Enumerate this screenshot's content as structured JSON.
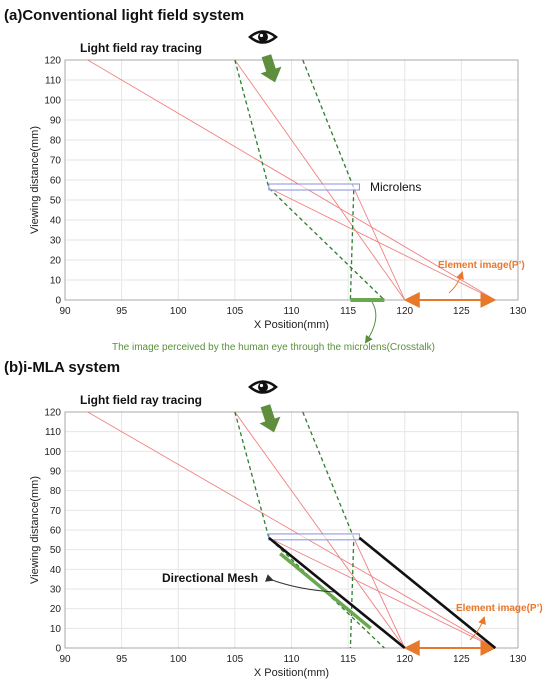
{
  "panels": {
    "a": {
      "title": "(a)Conventional light field system",
      "subtitle": "Light field ray tracing",
      "microlens_label": "Microlens",
      "element_label": "Element image(P’)",
      "crosstalk_label": "The image perceived by the human eye through the microlens(Crosstalk)"
    },
    "b": {
      "title": "(b)i-MLA system",
      "subtitle": "Light field ray tracing",
      "mesh_label": "Directional Mesh",
      "element_label": "Element image(P’)"
    }
  },
  "colors": {
    "ray": "#f08080",
    "dashed": "#2e7d32",
    "lens": "#8890e0",
    "orange": "#e8782a",
    "green_band": "#6aa84f",
    "mesh": "#111111",
    "eye": "#111111",
    "arrow": "#5f8f3e"
  },
  "icons": [
    "eye-icon",
    "down-arrow-icon"
  ],
  "chart_data": [
    {
      "type": "line",
      "xlabel": "X Position(mm)",
      "ylabel": "Viewing distance(mm)",
      "xlim": [
        90,
        130
      ],
      "ylim": [
        0,
        120
      ],
      "xticks": [
        "90",
        "95",
        "100",
        "105",
        "110",
        "115",
        "120",
        "125",
        "130"
      ],
      "yticks": [
        "0",
        "10",
        "20",
        "30",
        "40",
        "50",
        "60",
        "70",
        "80",
        "90",
        "100",
        "110",
        "120"
      ],
      "grid": true,
      "rays": [
        {
          "x": [
            92,
            128
          ],
          "y": [
            120,
            0
          ]
        },
        {
          "x": [
            105,
            120
          ],
          "y": [
            120,
            0
          ]
        },
        {
          "x": [
            108,
            128
          ],
          "y": [
            56,
            0
          ]
        },
        {
          "x": [
            115.5,
            120
          ],
          "y": [
            56,
            0
          ]
        }
      ],
      "dashed_lines": [
        {
          "x": [
            105,
            108,
            118.2
          ],
          "y": [
            120,
            56,
            0
          ]
        },
        {
          "x": [
            111,
            115.5,
            115.2
          ],
          "y": [
            120,
            56,
            0
          ]
        }
      ],
      "microlens": {
        "x": [
          108,
          116
        ],
        "y": [
          55,
          58
        ]
      },
      "element_image": {
        "x": [
          120,
          128
        ],
        "y": [
          0,
          0
        ]
      },
      "crosstalk_band": {
        "x": [
          115.2,
          118.2
        ],
        "y": [
          0,
          0
        ]
      }
    },
    {
      "type": "line",
      "xlabel": "X Position(mm)",
      "ylabel": "Viewing distance(mm)",
      "xlim": [
        90,
        130
      ],
      "ylim": [
        0,
        120
      ],
      "xticks": [
        "90",
        "95",
        "100",
        "105",
        "110",
        "115",
        "120",
        "125",
        "130"
      ],
      "yticks": [
        "0",
        "10",
        "20",
        "30",
        "40",
        "50",
        "60",
        "70",
        "80",
        "90",
        "100",
        "110",
        "120"
      ],
      "grid": true,
      "rays": [
        {
          "x": [
            92,
            128
          ],
          "y": [
            120,
            0
          ]
        },
        {
          "x": [
            105,
            120
          ],
          "y": [
            120,
            0
          ]
        },
        {
          "x": [
            108,
            128
          ],
          "y": [
            56,
            0
          ]
        },
        {
          "x": [
            115.5,
            120
          ],
          "y": [
            56,
            0
          ]
        }
      ],
      "dashed_lines": [
        {
          "x": [
            105,
            108,
            118.2
          ],
          "y": [
            120,
            56,
            0
          ]
        },
        {
          "x": [
            111,
            115.5,
            115.2
          ],
          "y": [
            120,
            56,
            0
          ]
        }
      ],
      "mesh_lines": [
        {
          "x": [
            108,
            120
          ],
          "y": [
            56,
            0
          ]
        },
        {
          "x": [
            116,
            128
          ],
          "y": [
            56,
            0
          ]
        }
      ],
      "microlens": {
        "x": [
          108,
          116
        ],
        "y": [
          55,
          58
        ]
      },
      "element_image": {
        "x": [
          120,
          128
        ],
        "y": [
          0,
          0
        ]
      },
      "green_segment": {
        "x": [
          109,
          117
        ],
        "y": [
          48,
          10
        ]
      }
    }
  ]
}
